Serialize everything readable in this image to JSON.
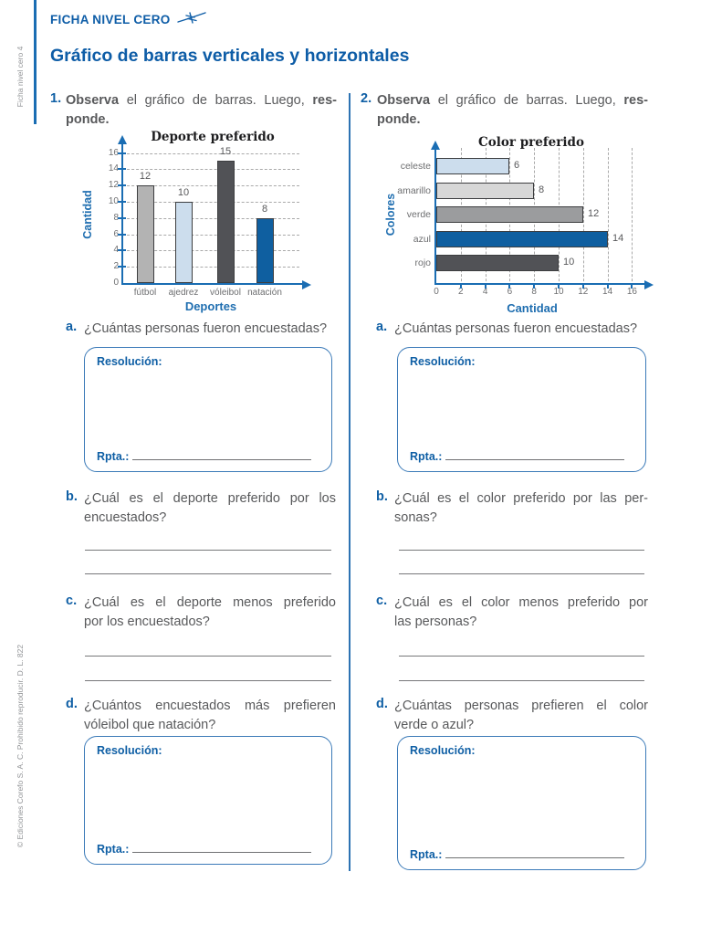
{
  "header": {
    "kicker": "FICHA NIVEL CERO",
    "title": "Gráfico de barras verticales y horizontales"
  },
  "sidebar": {
    "top": "Ficha nivel cero 4",
    "bottom": "© Ediciones Corefo S. A. C. Prohibido reproducir. D. L. 822"
  },
  "labels": {
    "resolucion": "Resolución:",
    "rpta": "Rpta.:"
  },
  "colors": {
    "accent_blue": "#0f5fa5",
    "axis_blue": "#1a6db3",
    "text_gray": "#58595b"
  },
  "exercise1": {
    "number": "1.",
    "prompt": {
      "bold_start": "Observa",
      "middle": "el gráfico de barras. Luego,",
      "bold_end": "res-",
      "line2": "ponde."
    },
    "questions": [
      {
        "label": "a.",
        "line1": "¿Cuántas personas fueron encuestadas?",
        "line2": ""
      },
      {
        "label": "b.",
        "line1": "¿Cuál es el deporte preferido por los",
        "line2": "encuestados?"
      },
      {
        "label": "c.",
        "line1": "¿Cuál es el deporte menos preferido",
        "line2": "por los encuestados?"
      },
      {
        "label": "d.",
        "line1": "¿Cuántos encuestados más prefieren",
        "line2": "vóleibol que natación?"
      }
    ]
  },
  "exercise2": {
    "number": "2.",
    "prompt": {
      "bold_start": "Observa",
      "middle": "el gráfico de barras. Luego,",
      "bold_end": "res-",
      "line2": "ponde."
    },
    "questions": [
      {
        "label": "a.",
        "line1": "¿Cuántas personas fueron encuestadas?",
        "line2": ""
      },
      {
        "label": "b.",
        "line1": "¿Cuál es el color preferido por las per-",
        "line2": "sonas?"
      },
      {
        "label": "c.",
        "line1": "¿Cuál es el color menos preferido por",
        "line2": "las personas?"
      },
      {
        "label": "d.",
        "line1": "¿Cuántas personas prefieren el color",
        "line2": "verde o azul?"
      }
    ]
  },
  "chart_data": [
    {
      "type": "bar",
      "orientation": "vertical",
      "title": "Deporte preferido",
      "categories": [
        "fútbol",
        "ajedrez",
        "vóleibol",
        "natación"
      ],
      "values": [
        12,
        10,
        15,
        8
      ],
      "bar_colors": [
        "#b3b3b3",
        "#ccdded",
        "#515256",
        "#0f5fa0"
      ],
      "xlabel": "Deportes",
      "ylabel": "Cantidad",
      "ylim": [
        0,
        16
      ],
      "tick_step": 2,
      "grid": "dashed-horizontal"
    },
    {
      "type": "bar",
      "orientation": "horizontal",
      "title": "Color preferido",
      "categories": [
        "celeste",
        "amarillo",
        "verde",
        "azul",
        "rojo"
      ],
      "values": [
        6,
        8,
        12,
        14,
        10
      ],
      "bar_colors": [
        "#ccdded",
        "#d7d7d7",
        "#9b9c9e",
        "#0f5fa0",
        "#515256"
      ],
      "xlabel": "Cantidad",
      "ylabel": "Colores",
      "xlim": [
        0,
        16
      ],
      "tick_step": 2,
      "grid": "dashed-vertical"
    }
  ]
}
